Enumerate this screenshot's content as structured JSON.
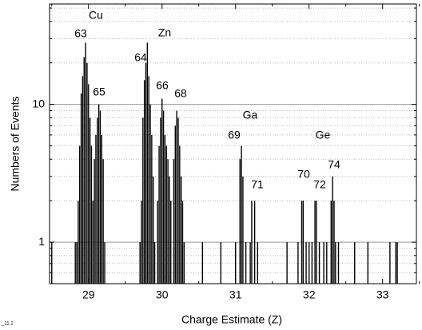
{
  "chart_data": {
    "type": "bar",
    "x_label": "Charge Estimate (Z)",
    "y_label": "Numbers of Events",
    "corner_label": "_11.1",
    "annotations": [
      "Cu",
      "63",
      "65",
      "Zn",
      "64",
      "66",
      "68",
      "Ga",
      "69",
      "71",
      "Ge",
      "70",
      "72",
      "74"
    ],
    "x": [
      28.5,
      28.82,
      28.84,
      28.86,
      28.88,
      28.9,
      28.92,
      28.94,
      28.96,
      28.98,
      29.0,
      29.02,
      29.04,
      29.06,
      29.08,
      29.1,
      29.12,
      29.14,
      29.16,
      29.18,
      29.2,
      29.22,
      29.7,
      29.72,
      29.74,
      29.76,
      29.78,
      29.8,
      29.82,
      29.84,
      29.86,
      29.88,
      29.9,
      29.94,
      29.96,
      29.98,
      30.0,
      30.02,
      30.04,
      30.06,
      30.08,
      30.1,
      30.12,
      30.16,
      30.18,
      30.2,
      30.22,
      30.24,
      30.26,
      30.28,
      30.3,
      30.55,
      30.8,
      31.0,
      31.06,
      31.08,
      31.1,
      31.14,
      31.2,
      31.22,
      31.26,
      31.3,
      31.7,
      31.85,
      31.9,
      31.92,
      31.96,
      32.0,
      32.04,
      32.08,
      32.1,
      32.14,
      32.2,
      32.24,
      32.3,
      32.32,
      32.34,
      32.36,
      32.4,
      32.62,
      32.8,
      33.1,
      33.18,
      33.2
    ],
    "values": [
      1,
      1,
      1,
      2,
      5,
      12,
      16,
      22,
      28,
      20,
      14,
      8,
      5,
      2,
      4,
      6,
      8,
      10,
      9,
      6,
      4,
      1,
      1,
      2,
      8,
      15,
      20,
      28,
      16,
      10,
      6,
      3,
      1,
      2,
      5,
      8,
      11,
      9,
      6,
      5,
      4,
      3,
      2,
      4,
      7,
      9,
      8,
      5,
      3,
      2,
      1,
      1,
      1,
      1,
      4,
      5,
      3,
      1,
      1,
      2,
      2,
      1,
      1,
      1,
      2,
      2,
      1,
      1,
      1,
      2,
      2,
      1,
      1,
      1,
      2,
      3,
      2,
      1,
      1,
      1,
      1,
      1,
      1,
      1
    ],
    "color": "#000000",
    "bar_width": 0.015,
    "xlim": [
      28.47,
      33.46
    ],
    "ylim": [
      0.5,
      53.5
    ],
    "y_log": true,
    "xticks": [
      29,
      30,
      31,
      32,
      33
    ],
    "x_minor_ticks": [
      28.5,
      29.5,
      30.5,
      31.5,
      32.5,
      33.5
    ],
    "yticks": [
      1,
      10
    ],
    "y_minor_ticks": [
      0.6,
      0.7,
      0.8,
      0.9,
      2,
      3,
      4,
      5,
      6,
      7,
      8,
      9,
      20,
      30,
      40,
      50
    ],
    "grid": true
  }
}
